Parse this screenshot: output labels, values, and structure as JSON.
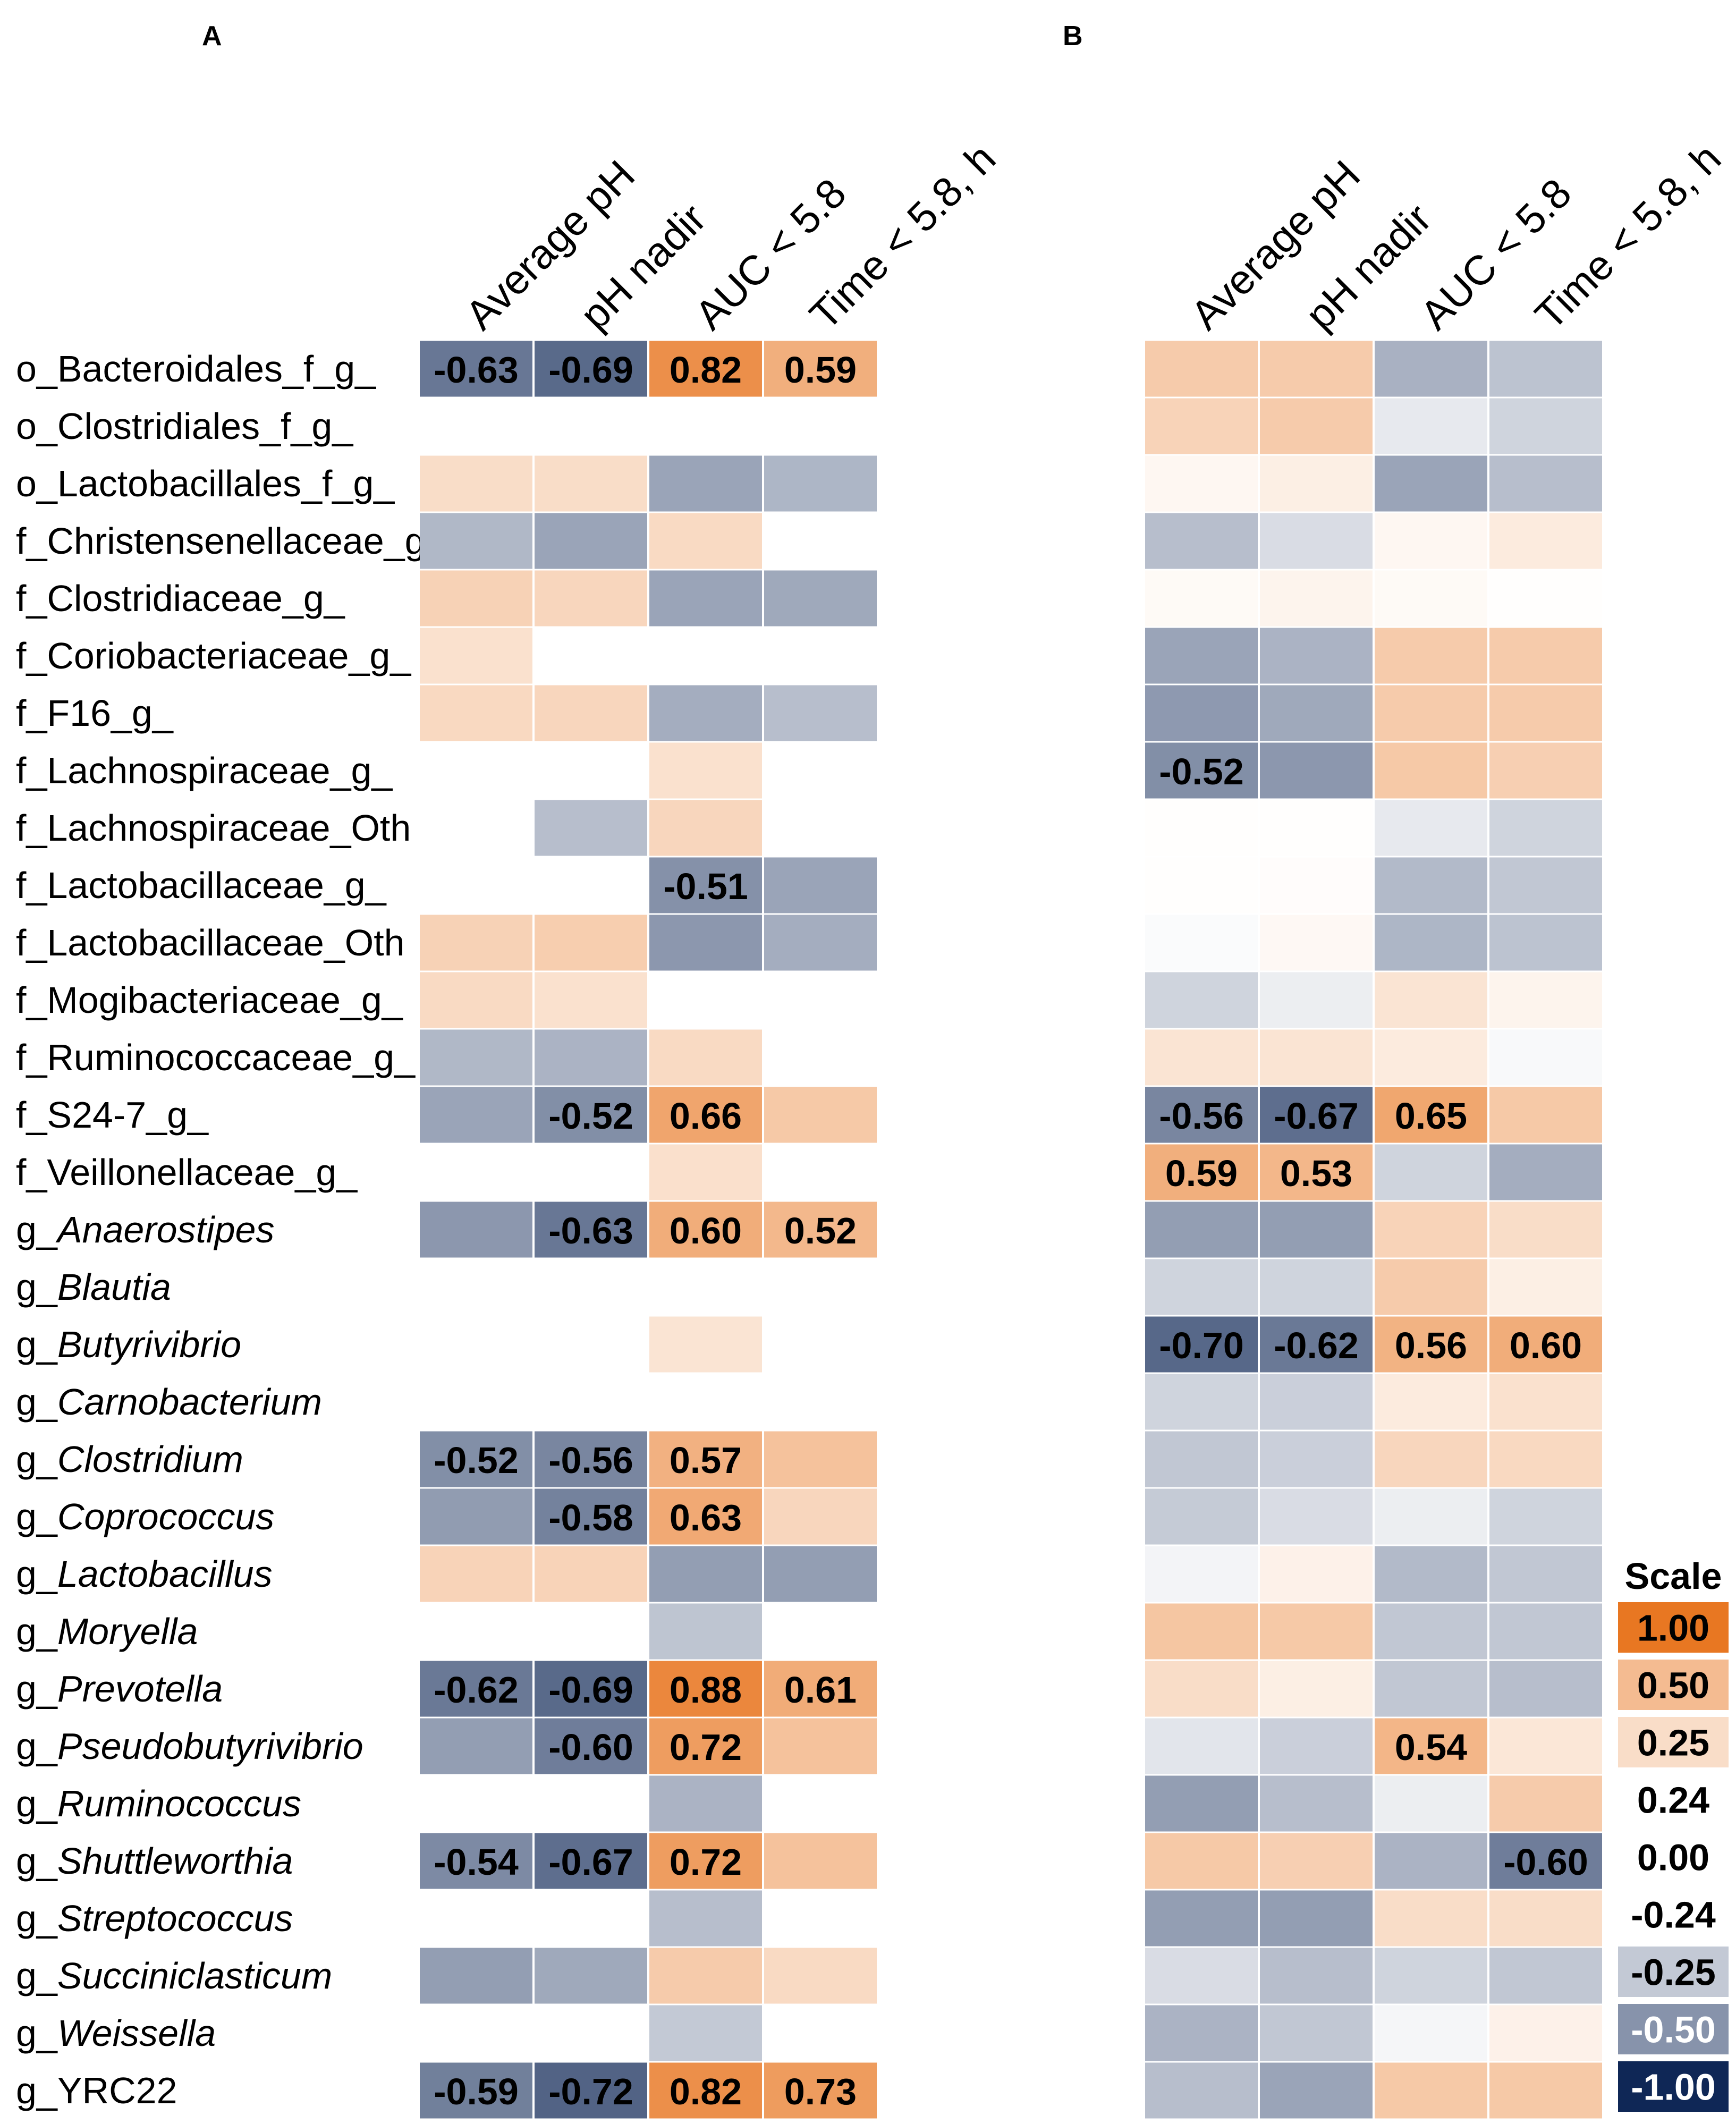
{
  "chart_data": {
    "type": "heatmap",
    "colors": {
      "pos_max": "#e87722",
      "neg_max": "#0f2756",
      "neutral": "#ffffff"
    },
    "columns": [
      "Average pH",
      "pH nadir",
      "AUC < 5.8",
      "Time < 5.8, h"
    ],
    "rows": [
      {
        "name": "o_Bacteroidales_f_g_",
        "pre": "o_Bacteroidales_f_g_",
        "it": ""
      },
      {
        "name": "o_Clostridiales_f_g_",
        "pre": "o_Clostridiales_f_g_",
        "it": ""
      },
      {
        "name": "o_Lactobacillales_f_g_",
        "pre": "o_Lactobacillales_f_g_",
        "it": ""
      },
      {
        "name": "f_Christensenellaceae_g_",
        "pre": "f_Christensenellaceae_g_",
        "it": ""
      },
      {
        "name": "f_Clostridiaceae_g_",
        "pre": "f_Clostridiaceae_g_",
        "it": ""
      },
      {
        "name": "f_Coriobacteriaceae_g_",
        "pre": "f_Coriobacteriaceae_g_",
        "it": ""
      },
      {
        "name": "f_F16_g_",
        "pre": "f_F16_g_",
        "it": ""
      },
      {
        "name": "f_Lachnospiraceae_g_",
        "pre": "f_Lachnospiraceae_g_",
        "it": ""
      },
      {
        "name": "f_Lachnospiraceae_Oth",
        "pre": "f_Lachnospiraceae_Oth",
        "it": ""
      },
      {
        "name": "f_Lactobacillaceae_g_",
        "pre": "f_Lactobacillaceae_g_",
        "it": ""
      },
      {
        "name": "f_Lactobacillaceae_Oth",
        "pre": "f_Lactobacillaceae_Oth",
        "it": ""
      },
      {
        "name": "f_Mogibacteriaceae_g_",
        "pre": "f_Mogibacteriaceae_g_",
        "it": ""
      },
      {
        "name": "f_Ruminococcaceae_g_",
        "pre": "f_Ruminococcaceae_g_",
        "it": ""
      },
      {
        "name": "f_S24-7_g_",
        "pre": "f_S24-7_g_",
        "it": ""
      },
      {
        "name": "f_Veillonellaceae_g_",
        "pre": "f_Veillonellaceae_g_",
        "it": ""
      },
      {
        "name": "g_Anaerostipes",
        "pre": "g_",
        "it": "Anaerostipes"
      },
      {
        "name": "g_Blautia",
        "pre": "g_",
        "it": "Blautia"
      },
      {
        "name": "g_Butyrivibrio",
        "pre": "g_",
        "it": "Butyrivibrio"
      },
      {
        "name": "g_Carnobacterium",
        "pre": "g_",
        "it": "Carnobacterium"
      },
      {
        "name": "g_Clostridium",
        "pre": "g_",
        "it": "Clostridium"
      },
      {
        "name": "g_Coprococcus",
        "pre": "g_",
        "it": "Coprococcus"
      },
      {
        "name": "g_Lactobacillus",
        "pre": "g_",
        "it": "Lactobacillus"
      },
      {
        "name": "g_Moryella",
        "pre": "g_",
        "it": "Moryella"
      },
      {
        "name": "g_Prevotella",
        "pre": "g_",
        "it": "Prevotella"
      },
      {
        "name": "g_Pseudobutyrivibrio",
        "pre": "g_",
        "it": "Pseudobutyrivibrio"
      },
      {
        "name": "g_Ruminococcus",
        "pre": "g_",
        "it": "Ruminococcus"
      },
      {
        "name": "g_Shuttleworthia",
        "pre": "g_",
        "it": "Shuttleworthia"
      },
      {
        "name": "g_Streptococcus",
        "pre": "g_",
        "it": "Streptococcus"
      },
      {
        "name": "g_Succiniclasticum",
        "pre": "g_",
        "it": "Succiniclasticum"
      },
      {
        "name": "g_Weissella",
        "pre": "g_",
        "it": "Weissella"
      },
      {
        "name": "g_YRC22",
        "pre": "g_YRC22",
        "it": ""
      }
    ],
    "panels": [
      {
        "label": "A",
        "values": [
          [
            -0.63,
            -0.69,
            0.82,
            0.59
          ],
          [
            null,
            null,
            null,
            null
          ],
          [
            0.25,
            0.25,
            -0.42,
            -0.34
          ],
          [
            -0.33,
            -0.42,
            0.27,
            null
          ],
          [
            0.33,
            0.3,
            -0.42,
            -0.4
          ],
          [
            0.22,
            null,
            null,
            null
          ],
          [
            0.28,
            0.3,
            -0.38,
            -0.3
          ],
          [
            null,
            null,
            0.22,
            null
          ],
          [
            null,
            -0.3,
            0.3,
            null
          ],
          [
            null,
            null,
            -0.51,
            -0.42
          ],
          [
            0.33,
            0.36,
            -0.48,
            -0.38
          ],
          [
            0.27,
            0.22,
            null,
            null
          ],
          [
            -0.33,
            -0.35,
            0.27,
            null
          ],
          [
            -0.42,
            -0.52,
            0.66,
            0.4
          ],
          [
            null,
            null,
            0.23,
            null
          ],
          [
            -0.48,
            -0.63,
            0.6,
            0.52
          ],
          [
            null,
            null,
            null,
            null
          ],
          [
            null,
            null,
            0.2,
            null
          ],
          [
            null,
            null,
            null,
            null
          ],
          [
            -0.52,
            -0.56,
            0.57,
            0.45
          ],
          [
            -0.46,
            -0.58,
            0.63,
            0.3
          ],
          [
            0.32,
            0.32,
            -0.45,
            -0.45
          ],
          [
            null,
            null,
            -0.27,
            null
          ],
          [
            -0.62,
            -0.69,
            0.88,
            0.61
          ],
          [
            -0.45,
            -0.6,
            0.72,
            0.45
          ],
          [
            null,
            null,
            -0.35,
            null
          ],
          [
            -0.54,
            -0.67,
            0.72,
            0.45
          ],
          [
            null,
            null,
            -0.3,
            null
          ],
          [
            -0.45,
            -0.4,
            0.38,
            0.27
          ],
          [
            null,
            null,
            -0.25,
            null
          ],
          [
            -0.59,
            -0.72,
            0.82,
            0.73
          ]
        ]
      },
      {
        "label": "B",
        "values": [
          [
            0.38,
            0.38,
            -0.36,
            -0.28
          ],
          [
            0.32,
            0.38,
            -0.1,
            -0.2
          ],
          [
            0.06,
            0.12,
            -0.42,
            -0.3
          ],
          [
            -0.3,
            -0.16,
            0.06,
            0.15
          ],
          [
            0.04,
            0.08,
            0.04,
            0.01
          ],
          [
            -0.42,
            -0.35,
            0.38,
            0.38
          ],
          [
            -0.47,
            -0.4,
            0.38,
            0.38
          ],
          [
            -0.52,
            -0.48,
            0.4,
            0.35
          ],
          [
            0.01,
            0.01,
            -0.1,
            -0.2
          ],
          [
            0.01,
            0.02,
            -0.32,
            -0.26
          ],
          [
            -0.02,
            0.05,
            -0.34,
            -0.28
          ],
          [
            -0.2,
            -0.08,
            0.2,
            0.08
          ],
          [
            0.2,
            0.2,
            0.15,
            -0.03
          ],
          [
            -0.56,
            -0.67,
            0.65,
            0.4
          ],
          [
            0.59,
            0.53,
            -0.2,
            -0.38
          ],
          [
            -0.45,
            -0.45,
            0.32,
            0.25
          ],
          [
            -0.2,
            -0.2,
            0.38,
            0.12
          ],
          [
            -0.7,
            -0.62,
            0.56,
            0.6
          ],
          [
            -0.2,
            -0.22,
            0.15,
            0.22
          ],
          [
            -0.26,
            -0.22,
            0.3,
            0.28
          ],
          [
            -0.24,
            -0.16,
            -0.08,
            -0.2
          ],
          [
            -0.05,
            0.1,
            -0.32,
            -0.26
          ],
          [
            0.42,
            0.4,
            -0.26,
            -0.26
          ],
          [
            0.25,
            0.12,
            -0.26,
            -0.3
          ],
          [
            -0.12,
            -0.22,
            0.54,
            0.18
          ],
          [
            -0.45,
            -0.3,
            -0.08,
            0.38
          ],
          [
            0.4,
            0.35,
            -0.35,
            -0.6
          ],
          [
            -0.45,
            -0.45,
            0.25,
            0.25
          ],
          [
            -0.16,
            -0.3,
            -0.2,
            -0.26
          ],
          [
            -0.35,
            -0.26,
            -0.04,
            0.1
          ],
          [
            -0.3,
            -0.42,
            0.4,
            0.4
          ]
        ]
      }
    ],
    "label_threshold": 0.5,
    "scale": {
      "title": "Scale",
      "entries": [
        "1.00",
        "0.50",
        "0.25",
        "0.24",
        "0.00",
        "-0.24",
        "-0.25",
        "-0.50",
        "-1.00"
      ],
      "entry_values": [
        1.0,
        0.5,
        0.25,
        0.24,
        0.0,
        -0.24,
        -0.25,
        -0.5,
        -1.0
      ],
      "colored": [
        true,
        true,
        true,
        false,
        false,
        false,
        true,
        true,
        true
      ]
    }
  }
}
